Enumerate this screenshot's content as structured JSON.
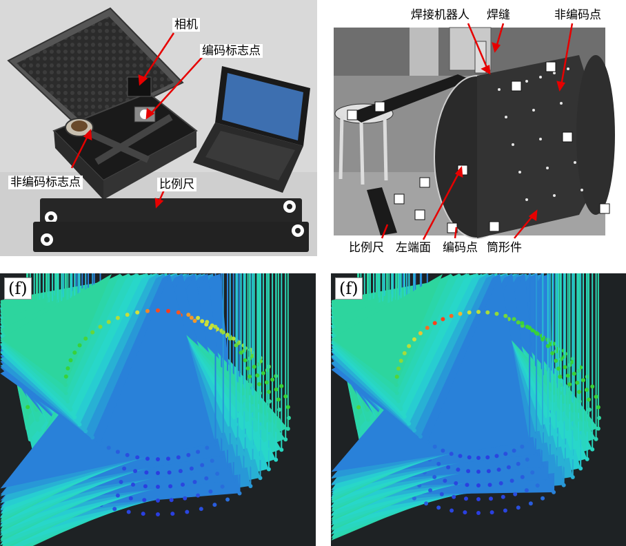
{
  "top_left": {
    "labels": {
      "camera": "相机",
      "coded_marker": "编码标志点",
      "uncoded_marker": "非编码标志点",
      "scale_bar": "比例尺"
    }
  },
  "top_right": {
    "labels": {
      "welding_robot": "焊接机器人",
      "weld_seam": "焊缝",
      "uncoded_point": "非编码点",
      "scale_bar": "比例尺",
      "left_end_face": "左端面",
      "coded_point": "编码点",
      "cylinder_part": "筒形件"
    }
  },
  "bottom_left": {
    "tag": "(f)"
  },
  "bottom_right": {
    "tag": "(f)"
  },
  "colors": {
    "arrow_red": "#ff3b1a",
    "arrow_yellow": "#e8e23a",
    "arrow_green": "#38d23a",
    "arrow_cyan": "#27d7d0",
    "arrow_blue": "#2a3ee0",
    "plot_bg": "#1e2224"
  }
}
